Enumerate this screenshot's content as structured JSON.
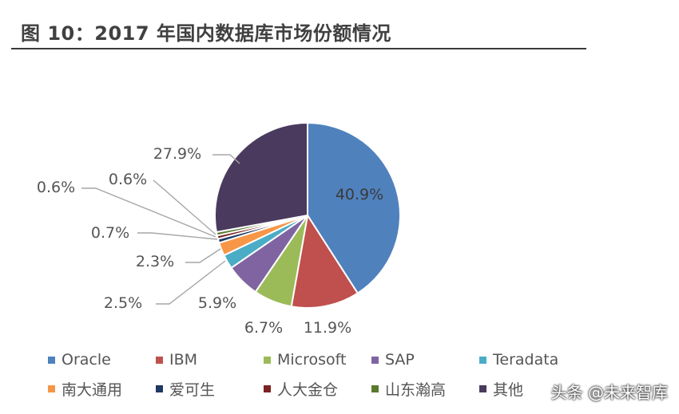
{
  "header": {
    "title": "图 10：2017 年国内数据库市场份额情况"
  },
  "watermark": "头条 @未来智库",
  "chart_data": {
    "type": "pie",
    "title": "",
    "start_angle_deg": 0,
    "direction": "clockwise",
    "legend_position": "bottom",
    "slices": [
      {
        "name": "Oracle",
        "value": 40.9,
        "label": "40.9%",
        "color": "#4f81bd"
      },
      {
        "name": "IBM",
        "value": 11.9,
        "label": "11.9%",
        "color": "#c0504d"
      },
      {
        "name": "Microsoft",
        "value": 6.7,
        "label": "6.7%",
        "color": "#9bbb59"
      },
      {
        "name": "SAP",
        "value": 5.9,
        "label": "5.9%",
        "color": "#8064a2"
      },
      {
        "name": "Teradata",
        "value": 2.5,
        "label": "2.5%",
        "color": "#4bacc6"
      },
      {
        "name": "南大通用",
        "value": 2.3,
        "label": "2.3%",
        "color": "#f79646"
      },
      {
        "name": "爱可生",
        "value": 0.7,
        "label": "0.7%",
        "color": "#1f3864"
      },
      {
        "name": "人大金仓",
        "value": 0.6,
        "label": "0.6%",
        "color": "#7b2222"
      },
      {
        "name": "山东瀚高",
        "value": 0.6,
        "label": "0.6%",
        "color": "#5a7a2b"
      },
      {
        "name": "其他",
        "value": 27.9,
        "label": "27.9%",
        "color": "#4a3a5e"
      }
    ]
  }
}
